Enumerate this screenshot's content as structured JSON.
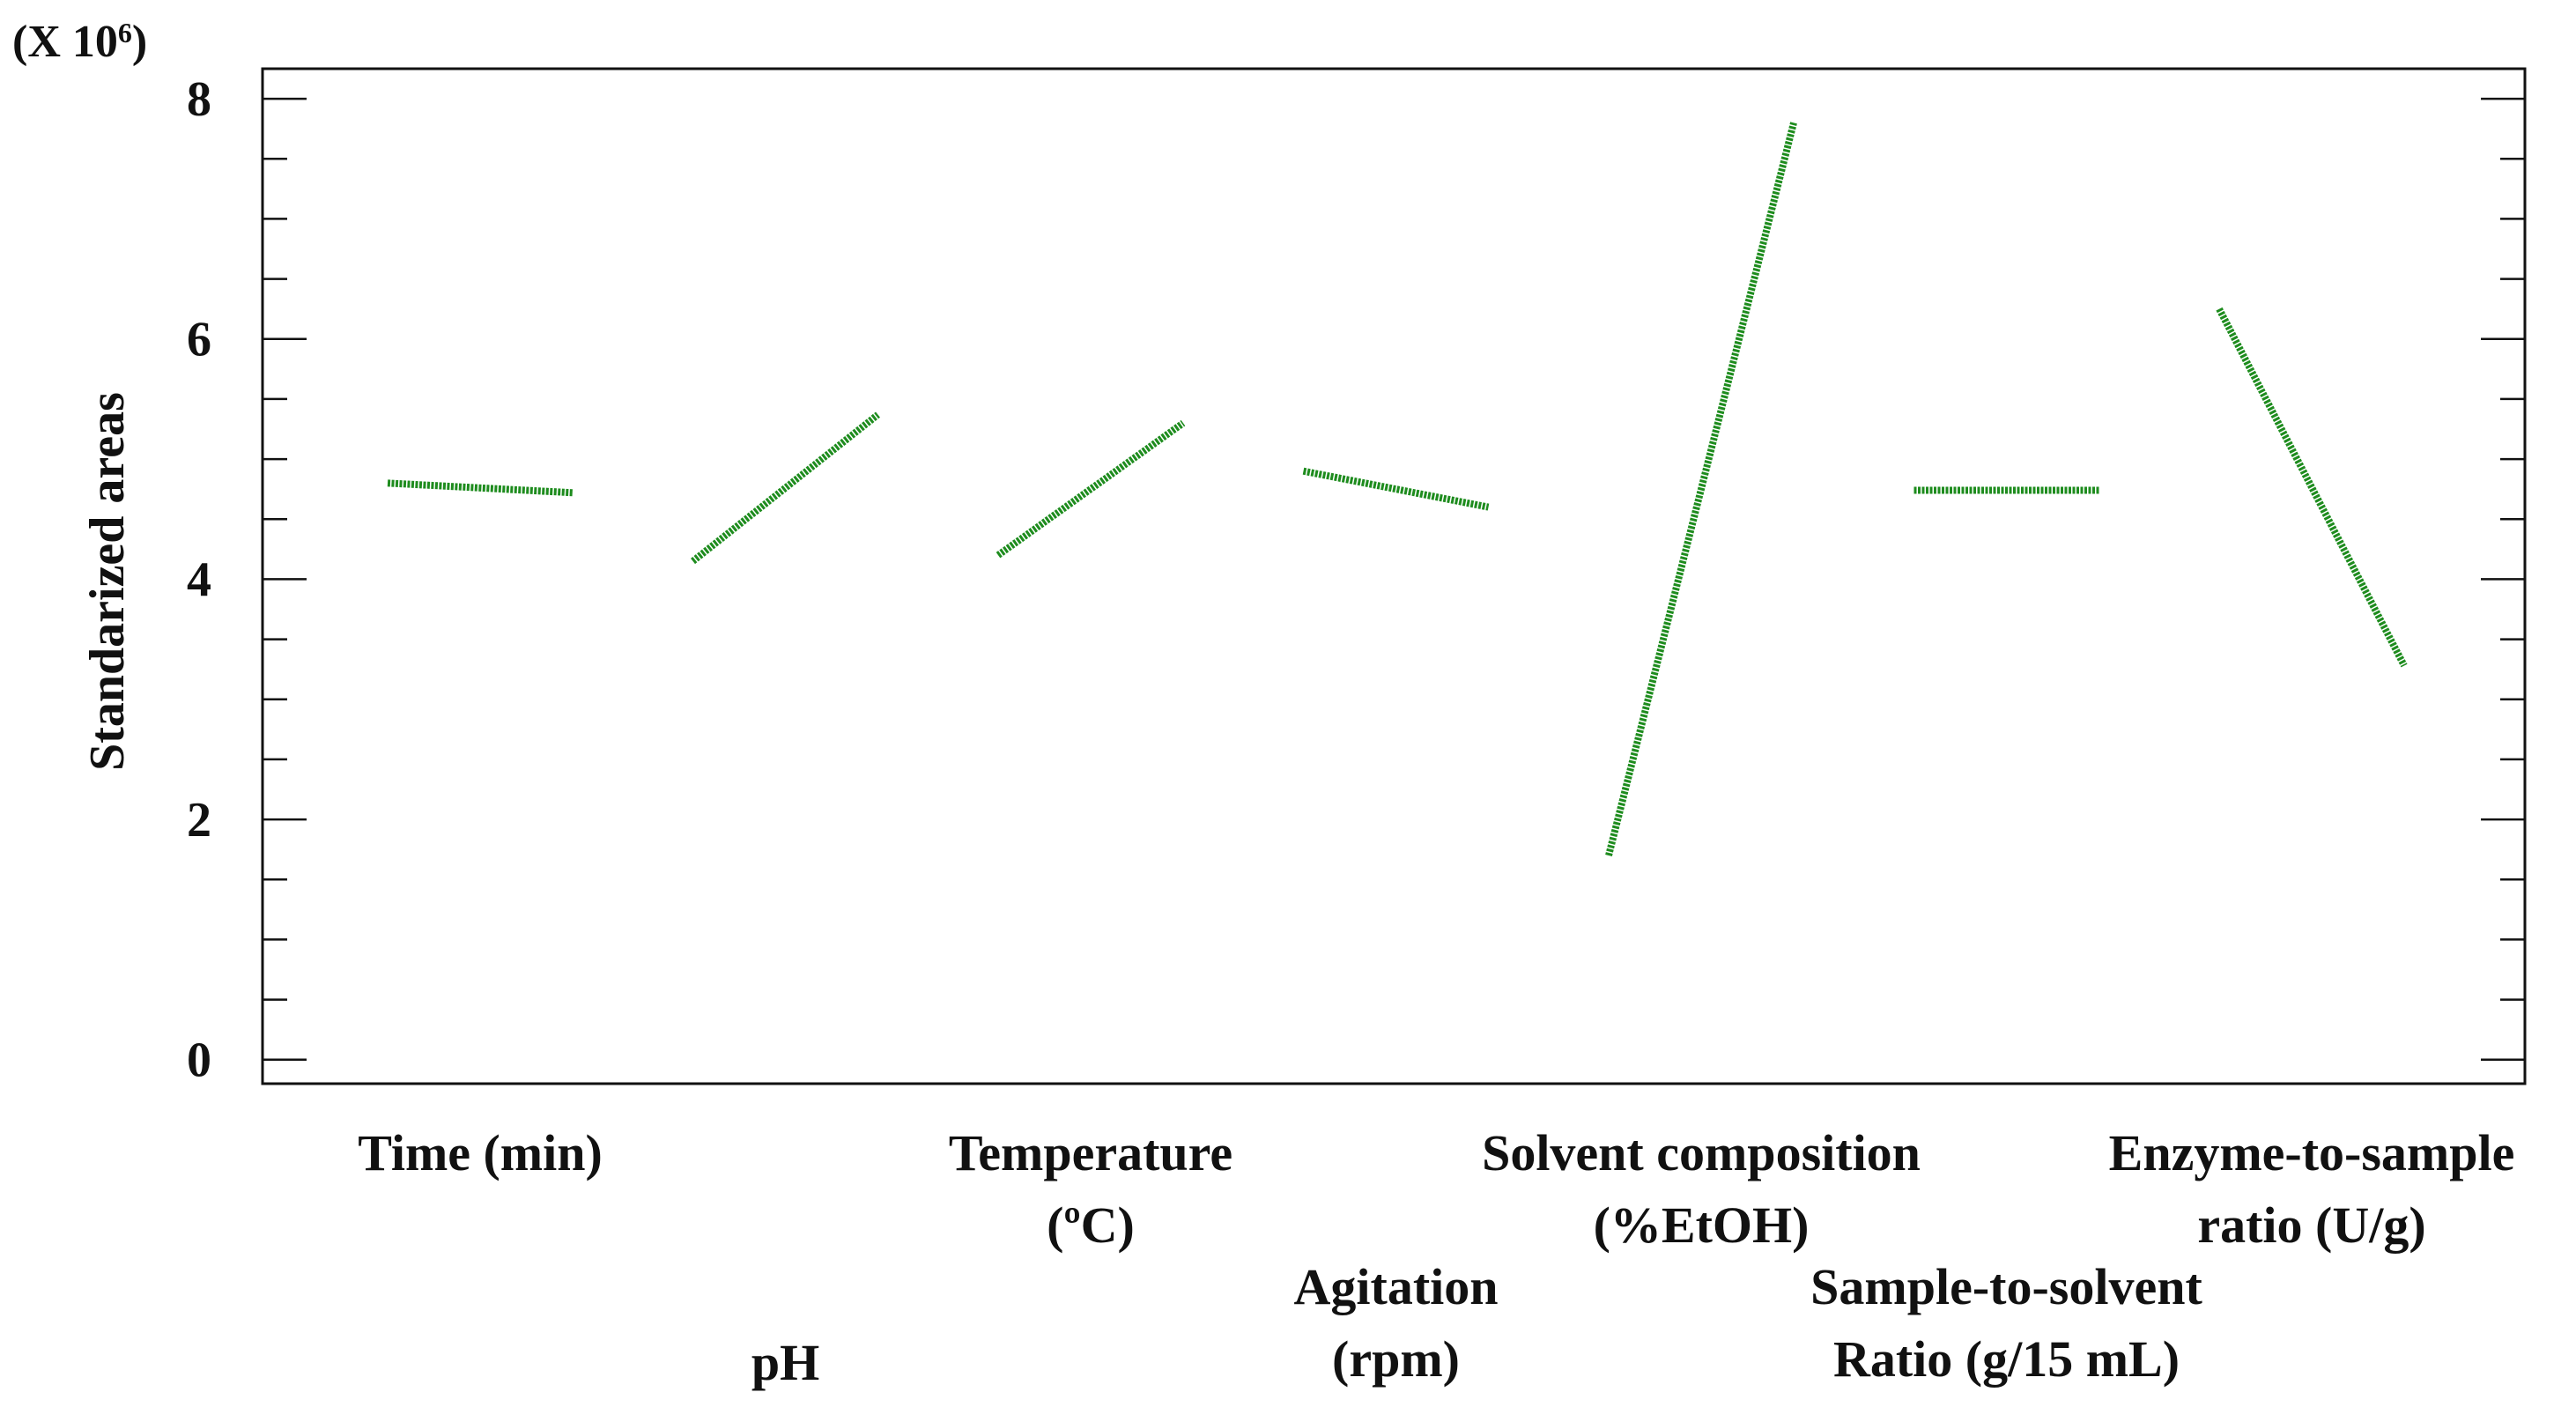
{
  "chart_data": {
    "type": "line",
    "title": "",
    "ylabel": "Standarized areas",
    "yscale_label": "(X 10",
    "yscale_exp": "6",
    "yscale_close": ")",
    "ylim": [
      -0.2,
      8.25
    ],
    "yticks": [
      0,
      2,
      4,
      6,
      8
    ],
    "yticklabels": [
      "0",
      "2",
      "4",
      "6",
      "8"
    ],
    "y_minor_step": 0.5,
    "grid": false,
    "line_color": "#1e8c1e",
    "factors": [
      {
        "name": "Time (min)",
        "label_lines": [
          "Time (min)"
        ],
        "label_row": 0,
        "start": 4.8,
        "end": 4.72
      },
      {
        "name": "pH",
        "label_lines": [
          "pH"
        ],
        "label_row": 2,
        "start": 4.15,
        "end": 5.37
      },
      {
        "name": "Temperature (ºC)",
        "label_lines": [
          "Temperature",
          "(ºC)"
        ],
        "label_row": 0,
        "start": 4.2,
        "end": 5.3
      },
      {
        "name": "Agitation (rpm)",
        "label_lines": [
          "Agitation",
          "(rpm)"
        ],
        "label_row": 1,
        "start": 4.9,
        "end": 4.6
      },
      {
        "name": "Solvent composition (%EtOH)",
        "label_lines": [
          "Solvent composition",
          "(%EtOH)"
        ],
        "label_row": 0,
        "start": 1.7,
        "end": 7.8
      },
      {
        "name": "Sample-to-solvent Ratio (g/15 mL)",
        "label_lines": [
          "Sample-to-solvent",
          "Ratio (g/15 mL)"
        ],
        "label_row": 1,
        "start": 4.74,
        "end": 4.74
      },
      {
        "name": "Enzyme-to-sample ratio (U/g)",
        "label_lines": [
          "Enzyme-to-sample",
          "ratio (U/g)"
        ],
        "label_row": 0,
        "start": 6.25,
        "end": 3.28
      }
    ]
  }
}
